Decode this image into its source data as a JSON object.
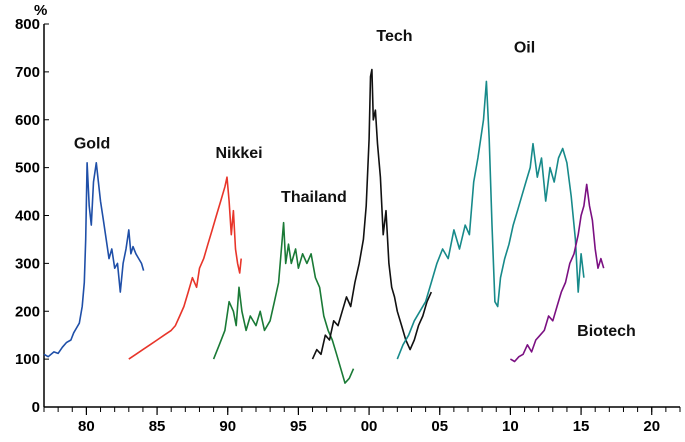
{
  "chart_data": {
    "type": "line",
    "title": "",
    "xlabel": "",
    "ylabel": "%",
    "xlim": [
      1977,
      2022
    ],
    "ylim": [
      0,
      800
    ],
    "grid": false,
    "x_ticks": [
      {
        "value": 1980,
        "label": "80"
      },
      {
        "value": 1985,
        "label": "85"
      },
      {
        "value": 1990,
        "label": "90"
      },
      {
        "value": 1995,
        "label": "95"
      },
      {
        "value": 2000,
        "label": "00"
      },
      {
        "value": 2005,
        "label": "05"
      },
      {
        "value": 2010,
        "label": "10"
      },
      {
        "value": 2015,
        "label": "15"
      },
      {
        "value": 2020,
        "label": "20"
      }
    ],
    "y_ticks": [
      0,
      100,
      200,
      300,
      400,
      500,
      600,
      700,
      800
    ],
    "series": [
      {
        "name": "Gold",
        "color": "#1f4fa8",
        "label_at": [
          1980.4,
          540
        ],
        "points": [
          [
            1977.0,
            110
          ],
          [
            1977.3,
            105
          ],
          [
            1977.7,
            115
          ],
          [
            1978.0,
            112
          ],
          [
            1978.3,
            125
          ],
          [
            1978.6,
            135
          ],
          [
            1978.9,
            140
          ],
          [
            1979.1,
            155
          ],
          [
            1979.3,
            165
          ],
          [
            1979.5,
            175
          ],
          [
            1979.7,
            210
          ],
          [
            1979.85,
            260
          ],
          [
            1979.95,
            350
          ],
          [
            1980.05,
            510
          ],
          [
            1980.2,
            420
          ],
          [
            1980.35,
            380
          ],
          [
            1980.5,
            470
          ],
          [
            1980.7,
            510
          ],
          [
            1980.85,
            470
          ],
          [
            1981.0,
            430
          ],
          [
            1981.2,
            390
          ],
          [
            1981.4,
            350
          ],
          [
            1981.6,
            310
          ],
          [
            1981.8,
            330
          ],
          [
            1982.0,
            290
          ],
          [
            1982.2,
            300
          ],
          [
            1982.4,
            240
          ],
          [
            1982.6,
            300
          ],
          [
            1982.8,
            330
          ],
          [
            1983.0,
            370
          ],
          [
            1983.15,
            320
          ],
          [
            1983.3,
            335
          ],
          [
            1983.5,
            320
          ],
          [
            1983.7,
            310
          ],
          [
            1983.9,
            300
          ],
          [
            1984.05,
            285
          ]
        ]
      },
      {
        "name": "Nikkei",
        "color": "#e8352a",
        "label_at": [
          1990.8,
          520
        ],
        "points": [
          [
            1983.0,
            100
          ],
          [
            1983.5,
            110
          ],
          [
            1984.0,
            120
          ],
          [
            1984.5,
            130
          ],
          [
            1985.0,
            140
          ],
          [
            1985.5,
            150
          ],
          [
            1986.0,
            160
          ],
          [
            1986.3,
            170
          ],
          [
            1986.6,
            190
          ],
          [
            1986.9,
            210
          ],
          [
            1987.2,
            240
          ],
          [
            1987.5,
            270
          ],
          [
            1987.8,
            250
          ],
          [
            1988.0,
            290
          ],
          [
            1988.3,
            310
          ],
          [
            1988.6,
            340
          ],
          [
            1988.9,
            370
          ],
          [
            1989.2,
            400
          ],
          [
            1989.5,
            430
          ],
          [
            1989.8,
            460
          ],
          [
            1989.95,
            480
          ],
          [
            1990.1,
            430
          ],
          [
            1990.25,
            360
          ],
          [
            1990.4,
            410
          ],
          [
            1990.55,
            330
          ],
          [
            1990.7,
            300
          ],
          [
            1990.85,
            280
          ],
          [
            1990.95,
            310
          ]
        ]
      },
      {
        "name": "Thailand",
        "color": "#1a7a36",
        "label_at": [
          1996.1,
          428
        ],
        "points": [
          [
            1989.0,
            100
          ],
          [
            1989.4,
            130
          ],
          [
            1989.8,
            160
          ],
          [
            1990.1,
            220
          ],
          [
            1990.4,
            200
          ],
          [
            1990.6,
            170
          ],
          [
            1990.8,
            250
          ],
          [
            1991.0,
            200
          ],
          [
            1991.3,
            160
          ],
          [
            1991.6,
            190
          ],
          [
            1992.0,
            170
          ],
          [
            1992.3,
            200
          ],
          [
            1992.6,
            160
          ],
          [
            1993.0,
            180
          ],
          [
            1993.3,
            220
          ],
          [
            1993.6,
            260
          ],
          [
            1993.8,
            330
          ],
          [
            1993.95,
            385
          ],
          [
            1994.1,
            300
          ],
          [
            1994.3,
            340
          ],
          [
            1994.5,
            300
          ],
          [
            1994.8,
            330
          ],
          [
            1995.0,
            290
          ],
          [
            1995.3,
            320
          ],
          [
            1995.6,
            300
          ],
          [
            1995.9,
            320
          ],
          [
            1996.2,
            270
          ],
          [
            1996.5,
            250
          ],
          [
            1996.8,
            190
          ],
          [
            1997.1,
            160
          ],
          [
            1997.4,
            140
          ],
          [
            1997.7,
            110
          ],
          [
            1998.0,
            80
          ],
          [
            1998.3,
            50
          ],
          [
            1998.6,
            60
          ],
          [
            1998.9,
            80
          ]
        ]
      },
      {
        "name": "Tech",
        "color": "#111111",
        "label_at": [
          2001.8,
          765
        ],
        "points": [
          [
            1996.0,
            100
          ],
          [
            1996.3,
            120
          ],
          [
            1996.6,
            110
          ],
          [
            1996.9,
            150
          ],
          [
            1997.2,
            140
          ],
          [
            1997.5,
            180
          ],
          [
            1997.8,
            170
          ],
          [
            1998.1,
            200
          ],
          [
            1998.4,
            230
          ],
          [
            1998.7,
            210
          ],
          [
            1999.0,
            260
          ],
          [
            1999.3,
            300
          ],
          [
            1999.6,
            350
          ],
          [
            1999.8,
            420
          ],
          [
            2000.0,
            560
          ],
          [
            2000.1,
            690
          ],
          [
            2000.2,
            705
          ],
          [
            2000.3,
            600
          ],
          [
            2000.45,
            620
          ],
          [
            2000.6,
            550
          ],
          [
            2000.8,
            480
          ],
          [
            2001.0,
            360
          ],
          [
            2001.2,
            410
          ],
          [
            2001.4,
            300
          ],
          [
            2001.6,
            250
          ],
          [
            2001.8,
            230
          ],
          [
            2002.0,
            200
          ],
          [
            2002.3,
            170
          ],
          [
            2002.6,
            140
          ],
          [
            2002.9,
            120
          ],
          [
            2003.2,
            140
          ],
          [
            2003.5,
            170
          ],
          [
            2003.8,
            190
          ],
          [
            2004.1,
            220
          ],
          [
            2004.4,
            240
          ]
        ]
      },
      {
        "name": "Oil",
        "color": "#178a8a",
        "label_at": [
          2011.0,
          740
        ],
        "points": [
          [
            2002.0,
            100
          ],
          [
            2002.4,
            130
          ],
          [
            2002.8,
            150
          ],
          [
            2003.2,
            180
          ],
          [
            2003.6,
            200
          ],
          [
            2004.0,
            220
          ],
          [
            2004.4,
            260
          ],
          [
            2004.8,
            300
          ],
          [
            2005.2,
            330
          ],
          [
            2005.6,
            310
          ],
          [
            2006.0,
            370
          ],
          [
            2006.4,
            330
          ],
          [
            2006.8,
            380
          ],
          [
            2007.1,
            360
          ],
          [
            2007.4,
            470
          ],
          [
            2007.7,
            520
          ],
          [
            2007.9,
            560
          ],
          [
            2008.1,
            600
          ],
          [
            2008.3,
            680
          ],
          [
            2008.5,
            560
          ],
          [
            2008.7,
            380
          ],
          [
            2008.9,
            220
          ],
          [
            2009.1,
            210
          ],
          [
            2009.3,
            270
          ],
          [
            2009.6,
            310
          ],
          [
            2009.9,
            340
          ],
          [
            2010.2,
            380
          ],
          [
            2010.5,
            410
          ],
          [
            2010.8,
            440
          ],
          [
            2011.1,
            470
          ],
          [
            2011.4,
            500
          ],
          [
            2011.6,
            550
          ],
          [
            2011.9,
            480
          ],
          [
            2012.2,
            520
          ],
          [
            2012.5,
            430
          ],
          [
            2012.8,
            500
          ],
          [
            2013.1,
            470
          ],
          [
            2013.4,
            520
          ],
          [
            2013.7,
            540
          ],
          [
            2014.0,
            510
          ],
          [
            2014.3,
            440
          ],
          [
            2014.6,
            350
          ],
          [
            2014.8,
            240
          ],
          [
            2015.0,
            320
          ],
          [
            2015.2,
            270
          ]
        ]
      },
      {
        "name": "Biotech",
        "color": "#7b1082",
        "label_at": [
          2016.8,
          148
        ],
        "points": [
          [
            2010.0,
            100
          ],
          [
            2010.3,
            95
          ],
          [
            2010.6,
            105
          ],
          [
            2010.9,
            110
          ],
          [
            2011.2,
            130
          ],
          [
            2011.5,
            115
          ],
          [
            2011.8,
            140
          ],
          [
            2012.1,
            150
          ],
          [
            2012.4,
            160
          ],
          [
            2012.7,
            190
          ],
          [
            2013.0,
            180
          ],
          [
            2013.3,
            210
          ],
          [
            2013.6,
            240
          ],
          [
            2013.9,
            260
          ],
          [
            2014.2,
            300
          ],
          [
            2014.5,
            320
          ],
          [
            2014.8,
            360
          ],
          [
            2015.0,
            400
          ],
          [
            2015.2,
            420
          ],
          [
            2015.4,
            465
          ],
          [
            2015.6,
            420
          ],
          [
            2015.8,
            390
          ],
          [
            2016.0,
            330
          ],
          [
            2016.2,
            290
          ],
          [
            2016.4,
            310
          ],
          [
            2016.6,
            290
          ]
        ]
      }
    ]
  },
  "icons": {
    "y_axis_unit": "%"
  }
}
